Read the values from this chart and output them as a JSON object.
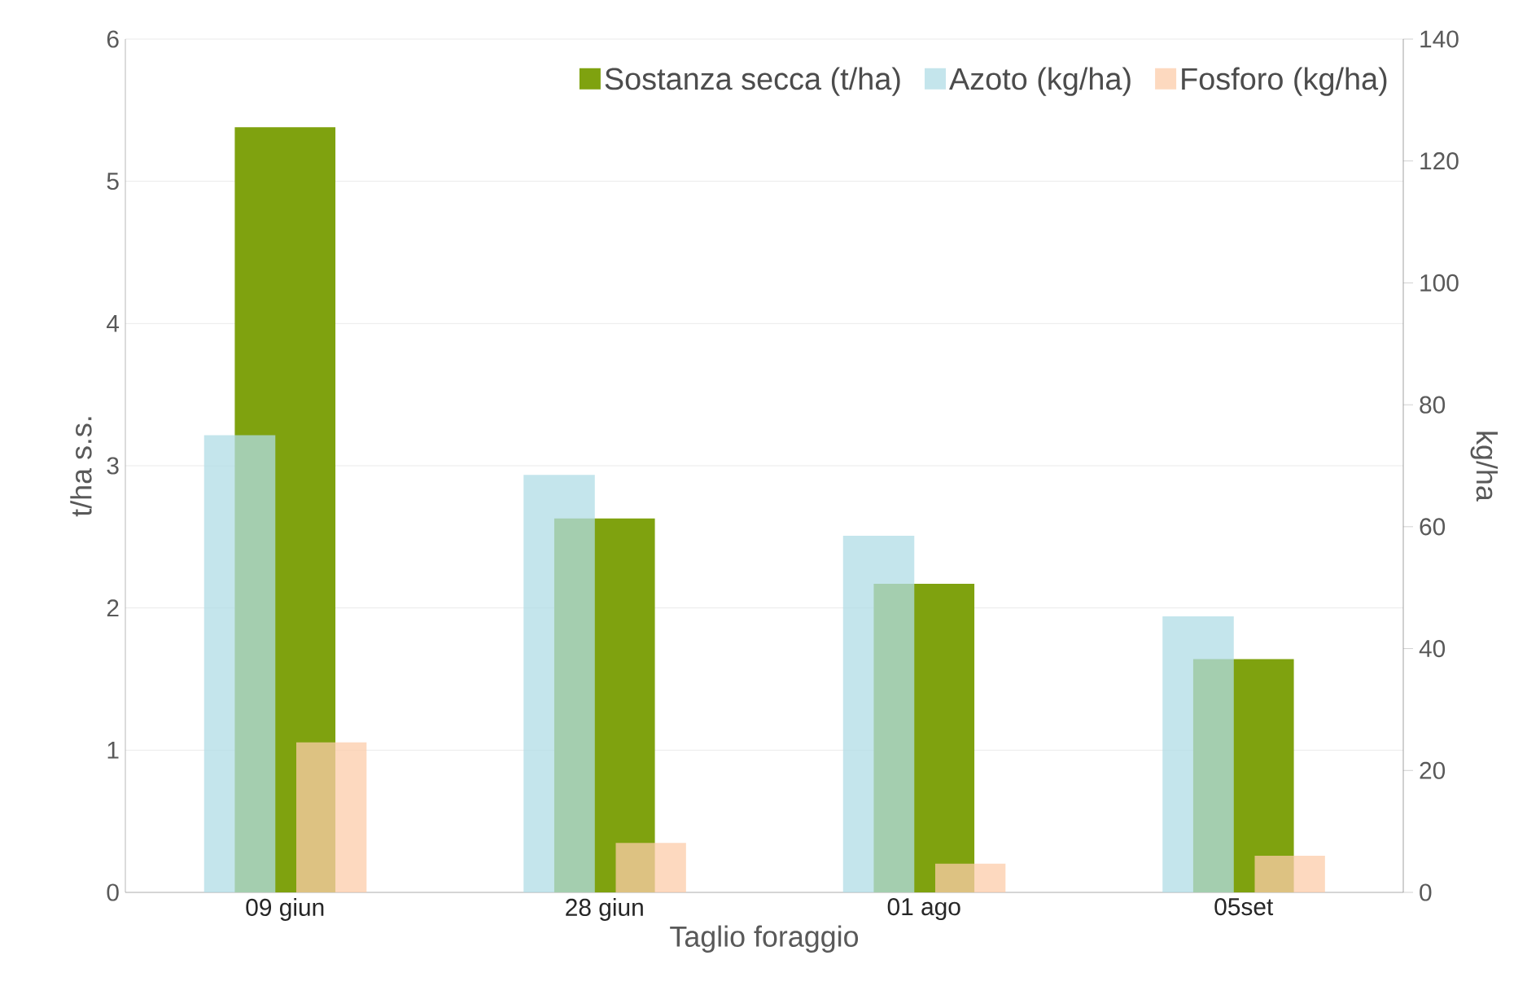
{
  "chart_data": {
    "type": "bar",
    "xlabel": "Taglio foraggio",
    "ylabel": "t/ha s.s.",
    "y2label": "kg/ha",
    "categories": [
      "09 giun",
      "28 giun",
      "01 ago",
      "05set"
    ],
    "series": [
      {
        "name": "Sostanza secca (t/ha)",
        "color": "#7fa20f",
        "values": [
          5.38,
          2.63,
          2.17,
          1.64
        ]
      },
      {
        "name": "Azoto (kg/ha)",
        "color": "#b0dce6",
        "axis": "y2",
        "values": [
          75,
          68.5,
          58.5,
          45.3
        ]
      },
      {
        "name": "Fosforo (kg/ha)",
        "color": "#fcccaa",
        "axis": "y2",
        "values": [
          24.6,
          8.1,
          4.7,
          6.0
        ]
      }
    ],
    "ylim": [
      0,
      6
    ],
    "yticks": [
      0,
      1,
      2,
      3,
      4,
      5,
      6
    ],
    "y2lim": [
      0,
      140
    ],
    "y2ticks": [
      0,
      20,
      40,
      60,
      80,
      100,
      120,
      140
    ],
    "grid": "y",
    "legend": "top right"
  }
}
